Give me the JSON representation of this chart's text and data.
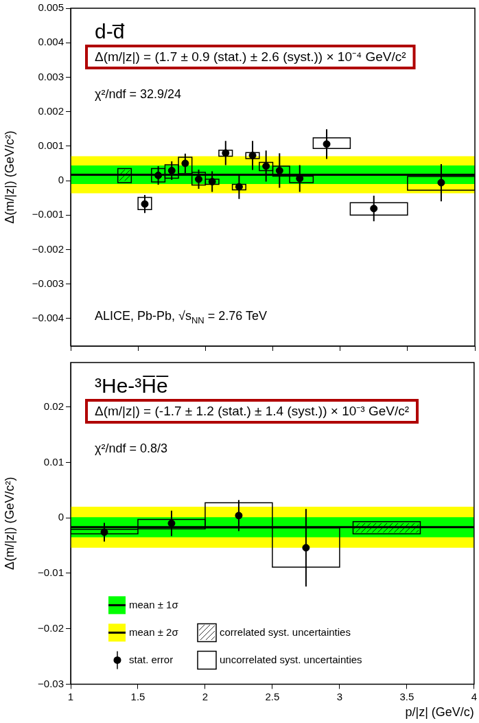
{
  "chart_data": [
    {
      "type": "scatter",
      "title": "d-d̅",
      "ylabel": "Δ(m/|z|) (GeV/c²)",
      "xlim": [
        1,
        4
      ],
      "xticks": [
        {
          "value": 1,
          "label": null
        },
        {
          "value": 1.5,
          "label": null
        },
        {
          "value": 2,
          "label": null
        },
        {
          "value": 2.5,
          "label": null
        },
        {
          "value": 3,
          "label": null
        },
        {
          "value": 3.5,
          "label": null
        },
        {
          "value": 4,
          "label": null
        }
      ],
      "ylim": [
        -0.0048,
        0.005
      ],
      "yticks": [
        {
          "value": -0.004,
          "label": "−0.004"
        },
        {
          "value": -0.003,
          "label": "−0.003"
        },
        {
          "value": -0.002,
          "label": "−0.002"
        },
        {
          "value": -0.001,
          "label": "−0.001"
        },
        0,
        0.001,
        0.002,
        0.003,
        0.004,
        0.005
      ],
      "tick_labels": "y",
      "marker": "circle",
      "grid": false,
      "annotations": [
        "Δ(m/|z|) = (1.7 ± 0.9 (stat.) ± 2.6 (syst.)) × 10⁻⁴ GeV/c²",
        "χ²/ndf = 32.9/24",
        "ALICE, Pb-Pb, √s$_{NN}$ = 2.76 TeV"
      ],
      "bands": [
        {
          "axis": "y",
          "from": -0.00037,
          "to": 0.00071,
          "color": "#ffff00"
        },
        {
          "axis": "y",
          "from": -0.0001,
          "to": 0.00044,
          "color": "#00ff00"
        }
      ],
      "ref_lines": [
        {
          "axis": "y",
          "value": 0.00017,
          "color": "#000000"
        }
      ],
      "series": [
        {
          "type": "bar",
          "color": "#000000",
          "x": [
            1.4
          ],
          "base": [
            -6e-05
          ],
          "values": [
            0.00041
          ]
        },
        {
          "type": "bar",
          "color": "#000000",
          "x": [
            1.55,
            1.65,
            1.75,
            1.85,
            1.95,
            2.05,
            2.15,
            2.25,
            2.35,
            2.45,
            2.55,
            2.7,
            2.9,
            3.25,
            3.75
          ],
          "base": [
            -0.00084,
            -4e-05,
            7e-05,
            0.0002,
            -0.00013,
            -0.00011,
            0.00071,
            -0.00027,
            0.00064,
            0.00029,
            0.00013,
            -6e-05,
            0.00093,
            -0.001,
            -0.00028
          ],
          "values": [
            0.00035,
            0.00039,
            0.00039,
            0.00048,
            0.00037,
            0.00015,
            0.00017,
            0.00016,
            0.00017,
            0.00024,
            0.00029,
            0.00019,
            0.00031,
            0.00036,
            0.0004
          ]
        },
        {
          "type": "scatter",
          "color": "#000000",
          "x": [
            1.55,
            1.65,
            1.75,
            1.85,
            1.95,
            2.05,
            2.15,
            2.25,
            2.35,
            2.45,
            2.55,
            2.7,
            2.9,
            3.25,
            3.75
          ],
          "values": [
            -0.00068,
            0.00015,
            0.00029,
            0.0005,
            4e-05,
            -3e-05,
            0.0008,
            -0.00018,
            0.00073,
            0.00042,
            0.00029,
            6e-05,
            0.00106,
            -0.00081,
            -6e-05
          ],
          "errors": [
            0.00026,
            0.00027,
            0.00027,
            0.00028,
            0.00028,
            0.0003,
            0.00035,
            0.00035,
            0.00042,
            0.00045,
            0.0005,
            0.00039,
            0.00043,
            0.00037,
            0.00054
          ]
        }
      ]
    },
    {
      "type": "scatter",
      "title": "³He-³H̅e̅",
      "xlabel": "p/|z| (GeV/c)",
      "ylabel": "Δ(m/|z|) (GeV/c²)",
      "xlim": [
        1,
        4
      ],
      "xticks": [
        1,
        1.5,
        2,
        2.5,
        3,
        3.5,
        4
      ],
      "ylim": [
        -0.03,
        0.028
      ],
      "yticks": [
        {
          "value": -0.03,
          "label": "−0.03"
        },
        {
          "value": -0.02,
          "label": "−0.02"
        },
        {
          "value": -0.01,
          "label": "−0.01"
        },
        0,
        0.01,
        0.02
      ],
      "marker": "circle",
      "grid": false,
      "legend": "bottom left",
      "annotations": [
        "Δ(m/|z|) = (-1.7 ± 1.2 (stat.) ± 1.4 (syst.)) × 10⁻³ GeV/c²",
        "χ²/ndf = 0.8/3"
      ],
      "bands": [
        {
          "axis": "y",
          "from": -0.0054,
          "to": 0.002,
          "color": "#ffff00",
          "label": "mean ± 2σ"
        },
        {
          "axis": "y",
          "from": -0.0035,
          "to": 0.0001,
          "color": "#00ff00",
          "label": "mean ± 1σ"
        }
      ],
      "ref_lines": [
        {
          "axis": "y",
          "value": -0.0017,
          "color": "#000000"
        }
      ],
      "series": [
        {
          "type": "bar",
          "name": "correlated syst. uncertainties",
          "color": "#000000",
          "x": [
            3.35
          ],
          "base": [
            -0.0029
          ],
          "values": [
            0.0022
          ]
        },
        {
          "type": "bar",
          "name": "uncorrelated syst. uncertainties",
          "color": "#000000",
          "x": [
            1.25,
            1.75,
            2.25,
            2.75
          ],
          "base": [
            -0.0029,
            -0.002,
            -0.0018,
            -0.0089
          ],
          "values": [
            0.0008,
            0.0017,
            0.0045,
            0.0071
          ]
        },
        {
          "type": "scatter",
          "name": "stat. error",
          "color": "#000000",
          "x": [
            1.25,
            1.75,
            2.25,
            2.75
          ],
          "values": [
            -0.0026,
            -0.001,
            0.0004,
            -0.0054
          ],
          "errors": [
            0.0017,
            0.0023,
            0.0028,
            0.007
          ]
        }
      ]
    }
  ]
}
